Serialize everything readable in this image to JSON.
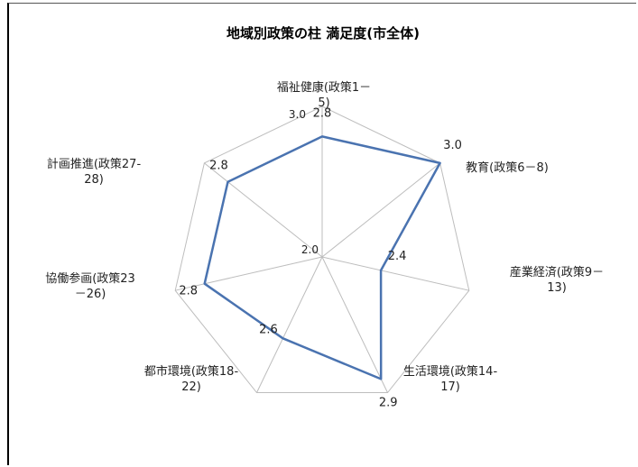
{
  "chart_data": {
    "type": "radar",
    "title": "地域別政策の柱 満足度(市全体)",
    "categories": [
      [
        "福祉健康(政策1－",
        "5)"
      ],
      [
        "教育(政策6－8)"
      ],
      [
        "産業経済(政策9－",
        "13)"
      ],
      [
        "生活環境(政策14-",
        "17)"
      ],
      [
        "都市環境(政策18-",
        "22)"
      ],
      [
        "協働参画(政策23",
        "－26)"
      ],
      [
        "計画推進(政策27-",
        "28)"
      ]
    ],
    "values": [
      2.8,
      3.0,
      2.4,
      2.9,
      2.6,
      2.8,
      2.8
    ],
    "value_labels": [
      "2.8",
      "3.0",
      "2.4",
      "2.9",
      "2.6",
      "2.8",
      "2.8"
    ],
    "scale": {
      "min": 2.0,
      "max": 3.0
    },
    "tick_labels": [
      "2.0",
      "3.0"
    ],
    "grid": true,
    "legend": "none",
    "series_color": "#4a73b0",
    "grid_color": "#bdbdbd"
  }
}
